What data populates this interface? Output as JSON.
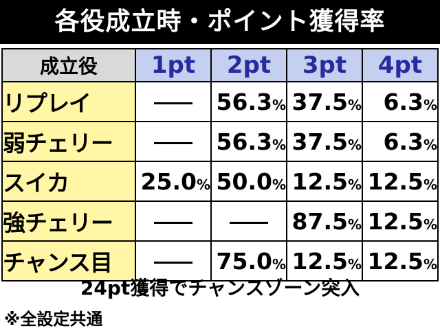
{
  "title": "各役成立時・ポイント獲得率",
  "table": {
    "header": {
      "role": "成立役",
      "cols": [
        "1pt",
        "2pt",
        "3pt",
        "4pt"
      ]
    },
    "rows": [
      {
        "role": "リプレイ",
        "values": [
          null,
          "56.3",
          "37.5",
          "6.3"
        ]
      },
      {
        "role": "弱チェリー",
        "values": [
          null,
          "56.3",
          "37.5",
          "6.3"
        ]
      },
      {
        "role": "スイカ",
        "values": [
          "25.0",
          "50.0",
          "12.5",
          "12.5"
        ]
      },
      {
        "role": "強チェリー",
        "values": [
          null,
          null,
          "87.5",
          "12.5"
        ]
      },
      {
        "role": "チャンス目",
        "values": [
          null,
          "75.0",
          "12.5",
          "12.5"
        ]
      }
    ],
    "unit": "%",
    "empty_mark": "dash"
  },
  "note": "24pt獲得でチャンスゾーン突入",
  "footnote": "※全設定共通",
  "colors": {
    "title_bg": "#000000",
    "header_role_bg": "#d9d9d9",
    "header_pt_bg": "#c5cff0",
    "header_pt_text": "#2a2a9c",
    "role_bg": "#fff7a6"
  }
}
